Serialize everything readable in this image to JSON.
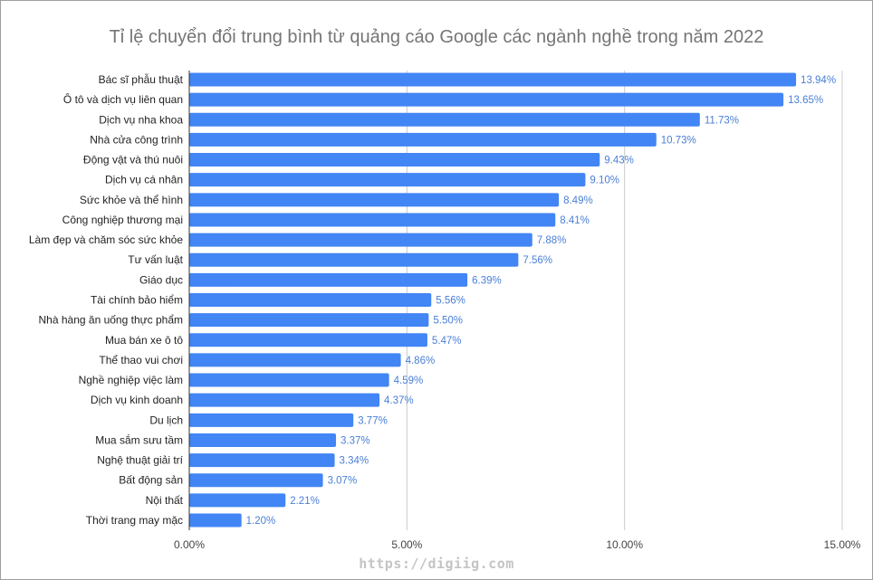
{
  "chart_data": {
    "type": "bar",
    "orientation": "horizontal",
    "title": "Tỉ lệ chuyển đổi trung bình từ quảng cáo Google các ngành nghề trong năm 2022",
    "xlabel": "",
    "ylabel": "",
    "xlim": [
      0,
      15
    ],
    "x_ticks": [
      "0.00%",
      "5.00%",
      "10.00%",
      "15.00%"
    ],
    "grid": true,
    "legend": "none",
    "bar_color": "#4285f4",
    "label_color": "#4a7fd6",
    "categories": [
      "Bác sĩ phẫu thuật",
      "Ô tô và dịch vụ liên quan",
      "Dịch vụ nha khoa",
      "Nhà cửa công trình",
      "Động vật và thú nuôi",
      "Dịch vụ cá nhân",
      "Sức khỏe và thể hình",
      "Công nghiệp thương mại",
      "Làm đẹp và chăm sóc sức khỏe",
      "Tư vấn luật",
      "Giáo dục",
      "Tài chính bảo hiểm",
      "Nhà hàng ăn uống thực phẩm",
      "Mua bán xe ô tô",
      "Thể thao vui chơi",
      "Nghề nghiệp việc làm",
      "Dịch vụ kinh doanh",
      "Du lịch",
      "Mua sắm sưu tầm",
      "Nghệ thuật giải trí",
      "Bất động sản",
      "Nội thất",
      "Thời trang may mặc"
    ],
    "values": [
      13.94,
      13.65,
      11.73,
      10.73,
      9.43,
      9.1,
      8.49,
      8.41,
      7.88,
      7.56,
      6.39,
      5.56,
      5.5,
      5.47,
      4.86,
      4.59,
      4.37,
      3.77,
      3.37,
      3.34,
      3.07,
      2.21,
      1.2
    ],
    "data_labels": [
      "13.94%",
      "13.65%",
      "11.73%",
      "10.73%",
      "9.43%",
      "9.10%",
      "8.49%",
      "8.41%",
      "7.88%",
      "7.56%",
      "6.39%",
      "5.56%",
      "5.50%",
      "5.47%",
      "4.86%",
      "4.59%",
      "4.37%",
      "3.77%",
      "3.37%",
      "3.34%",
      "3.07%",
      "2.21%",
      "1.20%"
    ]
  },
  "watermark": "https://digiig.com"
}
